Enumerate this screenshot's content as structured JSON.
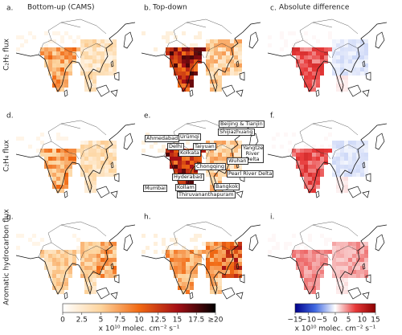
{
  "columns": [
    "Bottom-up (CAMS)",
    "Top-down",
    "Absolute difference"
  ],
  "rows": [
    "C₂H₂ flux",
    "C₂H₄ flux",
    "Aromatic hydrocarbon flux"
  ],
  "panels": [
    "a.",
    "b.",
    "c.",
    "d.",
    "e.",
    "f.",
    "g.",
    "h.",
    "i."
  ],
  "cities": [
    "Ürümqi",
    "Beijing & Tianjin",
    "Shijiazhuang",
    "Ahmedabad",
    "Delhi",
    "Taiyuan",
    "Kolkata",
    "Yangtze River Delta",
    "Chongqing",
    "Wuhan",
    "Hyderabad",
    "Pearl River Delta",
    "Mumbai",
    "Kollam",
    "Bangkok",
    "Thiruvananthapuram"
  ],
  "colorbars": [
    {
      "lim": [
        0,
        20
      ],
      "ticks": [
        0,
        2.5,
        5,
        7.5,
        10,
        12.5,
        15,
        17.5,
        {
          "value": 20,
          "label": "≥20"
        }
      ],
      "colors": [
        "#ffffff",
        "#fdd49e",
        "#f16913",
        "#a50f15",
        "#000000"
      ],
      "label": "x 10¹⁰ molec. cm⁻² s⁻¹"
    },
    {
      "lim": [
        -15,
        15
      ],
      "ticks": [
        {
          "value": -15,
          "label": "−15"
        },
        {
          "value": -10,
          "label": "−10"
        },
        {
          "value": -5,
          "label": "−5"
        },
        0,
        5,
        10,
        15
      ],
      "colors": [
        "#00008b",
        "#4169e1",
        "#ffffff",
        "#e83a3a",
        "#8b0000"
      ],
      "label": "x 10¹⁰ molec. cm⁻² s⁻¹"
    }
  ]
}
